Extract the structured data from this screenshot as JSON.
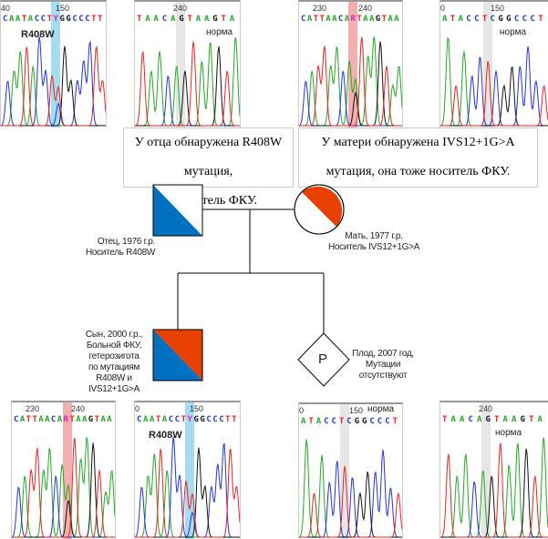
{
  "colors": {
    "A": "#22aa22",
    "C": "#2233dd",
    "G": "#111111",
    "T": "#ee2222",
    "mutation_blue": "#0070c0",
    "mutation_red": "#e84000",
    "highlight_blue": "#a6dcf2",
    "highlight_pink": "#f4b0b0",
    "highlight_grey": "#e6e6e6"
  },
  "panels": [
    {
      "id": "father-r408w",
      "ticks": [
        "40",
        "150"
      ],
      "sequence": "CAATACCTYGGCCCTT",
      "label": "R408W",
      "highlight": "blue"
    },
    {
      "id": "father-ivs12",
      "ticks": [
        "240"
      ],
      "sequence": "TAACAGTAAGTA",
      "label": "норма",
      "highlight": "grey"
    },
    {
      "id": "mother-ivs12",
      "ticks": [
        "230",
        "240"
      ],
      "sequence": "CATTAACARTAAGTAA",
      "label": "",
      "highlight": "pink"
    },
    {
      "id": "mother-r408w",
      "ticks": [
        "0",
        "150"
      ],
      "sequence": "ATACCTCGGCCCT",
      "label": "норма",
      "highlight": "grey"
    },
    {
      "id": "son-ivs12",
      "ticks": [
        "230",
        "240"
      ],
      "sequence": "CATTAACARTAAGTAA",
      "label": "",
      "highlight": "pink"
    },
    {
      "id": "son-r408w",
      "ticks": [
        "0",
        "150"
      ],
      "sequence": "CAATACCTYGGCCCTT",
      "label": "R408W",
      "highlight": "blue"
    },
    {
      "id": "fetus-r408w",
      "ticks": [
        "0",
        "150"
      ],
      "sequence": "ATACCTCGGCCCT",
      "label": "норма",
      "highlight": "grey"
    },
    {
      "id": "fetus-ivs12",
      "ticks": [
        "240"
      ],
      "sequence": "TAACAGTAAGTA",
      "label": "норма",
      "highlight": "grey"
    }
  ],
  "father_box": {
    "line1": "У отца обнаружена R408W мутация,",
    "line2": "он носитель ФКУ."
  },
  "mother_box": {
    "line1": "У матери обнаружена IVS12+1G>A",
    "line2": "мутация, она тоже носитель ФКУ."
  },
  "father": {
    "line1": "Отец, 1976 г.р.",
    "line2": "Носитель R408W"
  },
  "mother": {
    "line1": "Мать, 1977 г.р.",
    "line2": "Носитель IVS12+1G>A"
  },
  "son": {
    "lines": [
      "Сын, 2000 г.р.,",
      "Больной ФКУ,",
      "гетерозигота",
      "по мутациям",
      "R408W и",
      "IVS12+1G>A"
    ]
  },
  "fetus": {
    "symbol": "P",
    "lines": [
      "Плод, 2007 год,",
      "Мутации",
      "отсутствуют"
    ]
  }
}
